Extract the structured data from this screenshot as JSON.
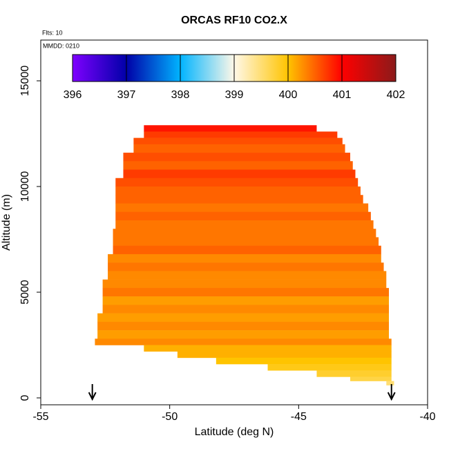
{
  "chart_data": {
    "type": "curtain",
    "title": "ORCAS RF10 CO2.X",
    "note_flights": "Flts: 10",
    "note_date": "MMDD: 0210",
    "xlabel": "Latitude (deg N)",
    "ylabel": "Altitude (m)",
    "xlim": [
      -55,
      -40
    ],
    "xticks": [
      -55,
      -50,
      -45,
      -40
    ],
    "ylim": [
      -327,
      16928
    ],
    "yticks": [
      0,
      5000,
      10000,
      15000
    ],
    "clim": [
      396,
      402
    ],
    "cticks": [
      396,
      397,
      398,
      399,
      400,
      401,
      402
    ],
    "colorscale": [
      "#7f00ff",
      "#0000a8",
      "#00b4ff",
      "#fff8e8",
      "#ffc400",
      "#ff0000",
      "#8b1a1a"
    ],
    "arrows": [
      -53,
      -41.4
    ],
    "cells": {
      "alt0": [
        12600,
        12300,
        12000,
        11600,
        11200,
        10800,
        10400,
        10000,
        9600,
        9200,
        8800,
        8400,
        8000,
        7600,
        7200,
        6800,
        6400,
        6000,
        5600,
        5200,
        4800,
        4400,
        4000,
        3600,
        3200,
        2800,
        2500,
        2200,
        1900,
        1600,
        1300,
        1000,
        800,
        600
      ],
      "alt1": [
        12900,
        12600,
        12300,
        12000,
        11600,
        11200,
        10800,
        10400,
        10000,
        9600,
        9200,
        8800,
        8400,
        8000,
        7600,
        7200,
        6800,
        6400,
        6000,
        5600,
        5200,
        4800,
        4400,
        4000,
        3600,
        3200,
        2800,
        2500,
        2200,
        1900,
        1600,
        1300,
        1000,
        800
      ],
      "lat0": [
        -51.0,
        -51.0,
        -51.4,
        -51.4,
        -51.8,
        -51.8,
        -51.8,
        -52.1,
        -52.1,
        -52.1,
        -52.1,
        -52.1,
        -52.1,
        -52.2,
        -52.2,
        -52.2,
        -52.4,
        -52.4,
        -52.4,
        -52.6,
        -52.6,
        -52.6,
        -52.6,
        -52.8,
        -52.8,
        -52.8,
        -52.9,
        -51.0,
        -49.7,
        -48.2,
        -46.2,
        -44.3,
        -43.0,
        -41.6
      ],
      "lat1": [
        -44.3,
        -43.5,
        -43.3,
        -43.2,
        -43.0,
        -42.9,
        -42.8,
        -42.7,
        -42.6,
        -42.5,
        -42.3,
        -42.2,
        -42.1,
        -42.0,
        -41.9,
        -41.8,
        -41.8,
        -41.7,
        -41.6,
        -41.6,
        -41.5,
        -41.5,
        -41.5,
        -41.5,
        -41.5,
        -41.5,
        -41.4,
        -41.4,
        -41.4,
        -41.4,
        -41.4,
        -41.4,
        -41.4,
        -41.3
      ],
      "values": [
        400.9,
        400.7,
        400.6,
        400.5,
        400.6,
        400.5,
        400.7,
        400.6,
        400.5,
        400.5,
        400.4,
        400.5,
        400.4,
        400.4,
        400.4,
        400.5,
        400.3,
        400.4,
        400.3,
        400.3,
        400.4,
        400.2,
        400.3,
        400.2,
        400.3,
        400.2,
        400.3,
        400.1,
        400.1,
        400.0,
        399.9,
        399.8,
        399.7,
        399.5
      ]
    }
  }
}
